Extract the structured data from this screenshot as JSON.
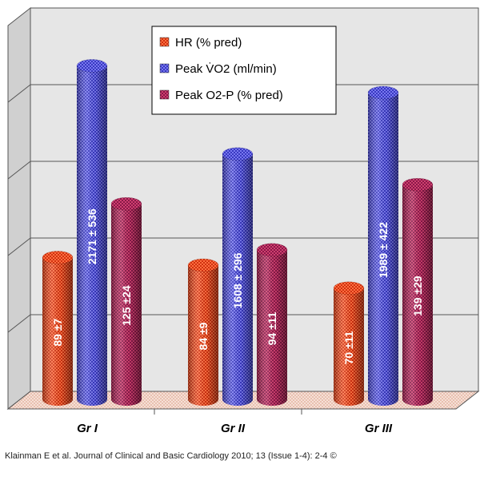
{
  "chart_data": {
    "type": "bar",
    "categories": [
      "Gr I",
      "Gr II",
      "Gr III"
    ],
    "series": [
      {
        "name": "HR (% pred)",
        "color": "#d03010",
        "relative_height": [
          0.37,
          0.35,
          0.29
        ],
        "labels": [
          "89 ±7",
          "84 ±9",
          "70 ±11"
        ]
      },
      {
        "name": "Peak V̇O2 (ml/min)",
        "color": "#4040c8",
        "relative_height": [
          0.87,
          0.64,
          0.8
        ],
        "labels": [
          "2171 ± 536",
          "1608 ± 296",
          "1989 ± 422"
        ]
      },
      {
        "name": "Peak O2-P (% pred)",
        "color": "#a02050",
        "relative_height": [
          0.51,
          0.39,
          0.56
        ],
        "labels": [
          "125 ±24",
          "94 ±11",
          "139 ±29"
        ]
      }
    ],
    "grid": true,
    "legend_position": "top-center",
    "xlabel": "",
    "ylabel": ""
  },
  "citation": "Klainman E et al. Journal of Clinical and Basic Cardiology 2010; 13 (Issue 1-4): 2-4 ©"
}
